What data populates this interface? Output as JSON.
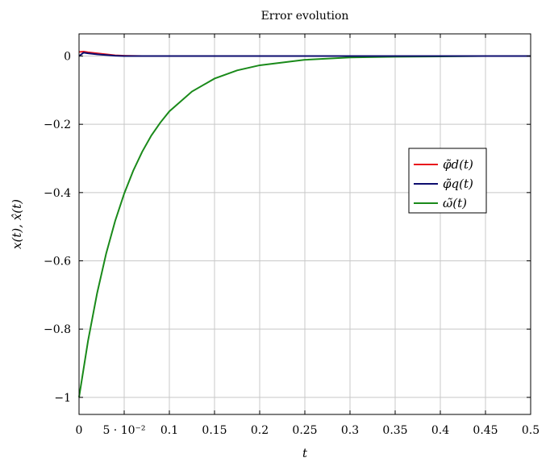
{
  "chart_data": {
    "type": "line",
    "title": "Error evolution",
    "xlabel": "t",
    "ylabel": "x(t), x̂(t)",
    "xlim": [
      0,
      0.5
    ],
    "ylim": [
      -1.05,
      0.065
    ],
    "grid": true,
    "legend_position": "right",
    "x_ticks": [
      0,
      0.05,
      0.1,
      0.15,
      0.2,
      0.25,
      0.3,
      0.35,
      0.4,
      0.45,
      0.5
    ],
    "x_tick_labels": [
      "0",
      "5 · 10⁻²",
      "0.1",
      "0.15",
      "0.2",
      "0.25",
      "0.3",
      "0.35",
      "0.4",
      "0.45",
      "0.5"
    ],
    "y_ticks": [
      0,
      -0.2,
      -0.4,
      -0.6,
      -0.8,
      -1
    ],
    "y_tick_labels": [
      "0",
      "−0.2",
      "−0.4",
      "−0.6",
      "−0.8",
      "−1"
    ],
    "series": [
      {
        "name": "φ̃d(t)",
        "color": "#e8141c",
        "x": [
          0,
          0.005,
          0.01,
          0.02,
          0.03,
          0.04,
          0.05,
          0.07,
          0.1,
          0.2,
          0.3,
          0.4,
          0.5
        ],
        "y": [
          0.012,
          0.013,
          0.011,
          0.008,
          0.005,
          0.002,
          0.001,
          0.0,
          0.0,
          0.0,
          0.0,
          0.0,
          0.0
        ]
      },
      {
        "name": "φ̃q(t)",
        "color": "#0c0c6e",
        "x": [
          0,
          0.005,
          0.01,
          0.02,
          0.03,
          0.04,
          0.05,
          0.07,
          0.1,
          0.2,
          0.3,
          0.4,
          0.5
        ],
        "y": [
          0.0,
          0.01,
          0.008,
          0.005,
          0.003,
          0.001,
          0.0,
          0.0,
          0.0,
          0.0,
          0.0,
          0.0,
          0.0
        ]
      },
      {
        "name": "ω̃(t)",
        "color": "#1a8a1a",
        "x": [
          0,
          0.01,
          0.02,
          0.03,
          0.04,
          0.05,
          0.06,
          0.07,
          0.08,
          0.09,
          0.1,
          0.125,
          0.15,
          0.175,
          0.2,
          0.25,
          0.3,
          0.35,
          0.4,
          0.45,
          0.5
        ],
        "y": [
          -1.0,
          -0.834,
          -0.695,
          -0.579,
          -0.483,
          -0.403,
          -0.336,
          -0.28,
          -0.233,
          -0.195,
          -0.162,
          -0.104,
          -0.066,
          -0.042,
          -0.027,
          -0.011,
          -0.004,
          -0.002,
          -0.001,
          0.0,
          0.0
        ]
      }
    ]
  }
}
